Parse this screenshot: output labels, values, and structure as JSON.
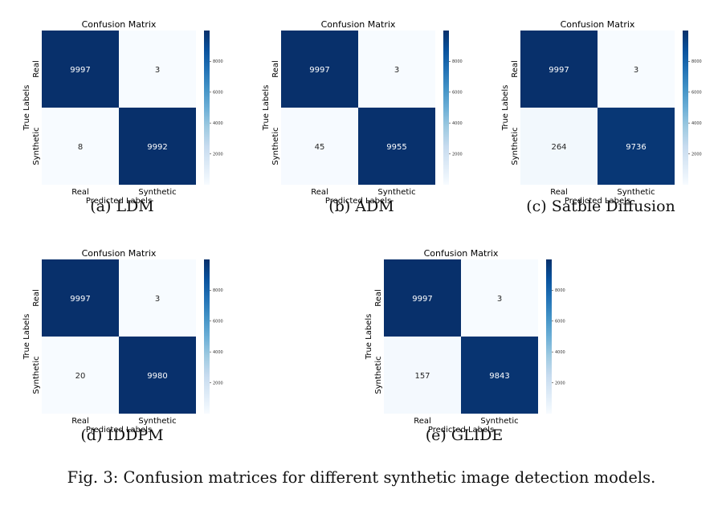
{
  "chart_data": [
    {
      "type": "heatmap",
      "id": "ldm",
      "title": "Confusion Matrix",
      "xlabel": "Predicted Labels",
      "ylabel": "True Labels",
      "x_categories": [
        "Real",
        "Synthetic"
      ],
      "y_categories": [
        "Real",
        "Synthetic"
      ],
      "values": [
        [
          9997,
          3
        ],
        [
          8,
          9992
        ]
      ],
      "colorbar_ticks": [
        "8000",
        "6000",
        "4000",
        "2000"
      ],
      "colorbar_range": [
        0,
        9997
      ],
      "caption": "(a) LDM"
    },
    {
      "type": "heatmap",
      "id": "adm",
      "title": "Confusion Matrix",
      "xlabel": "Predicted Labels",
      "ylabel": "True Labels",
      "x_categories": [
        "Real",
        "Synthetic"
      ],
      "y_categories": [
        "Real",
        "Synthetic"
      ],
      "values": [
        [
          9997,
          3
        ],
        [
          45,
          9955
        ]
      ],
      "colorbar_ticks": [
        "8000",
        "6000",
        "4000",
        "2000"
      ],
      "colorbar_range": [
        0,
        9997
      ],
      "caption": "(b) ADM"
    },
    {
      "type": "heatmap",
      "id": "sd",
      "title": "Confusion Matrix",
      "xlabel": "Predicted Labels",
      "ylabel": "True Labels",
      "x_categories": [
        "Real",
        "Synthetic"
      ],
      "y_categories": [
        "Real",
        "Synthetic"
      ],
      "values": [
        [
          9997,
          3
        ],
        [
          264,
          9736
        ]
      ],
      "colorbar_ticks": [
        "8000",
        "6000",
        "4000",
        "2000"
      ],
      "colorbar_range": [
        0,
        9997
      ],
      "caption": "(c) Satble Diffusion"
    },
    {
      "type": "heatmap",
      "id": "iddpm",
      "title": "Confusion Matrix",
      "xlabel": "Predicted Labels",
      "ylabel": "True Labels",
      "x_categories": [
        "Real",
        "Synthetic"
      ],
      "y_categories": [
        "Real",
        "Synthetic"
      ],
      "values": [
        [
          9997,
          3
        ],
        [
          20,
          9980
        ]
      ],
      "colorbar_ticks": [
        "8000",
        "6000",
        "4000",
        "2000"
      ],
      "colorbar_range": [
        0,
        9997
      ],
      "caption": "(d) IDDPM"
    },
    {
      "type": "heatmap",
      "id": "glide",
      "title": "Confusion Matrix",
      "xlabel": "Predicted Labels",
      "ylabel": "True Labels",
      "x_categories": [
        "Real",
        "Synthetic"
      ],
      "y_categories": [
        "Real",
        "Synthetic"
      ],
      "values": [
        [
          9997,
          3
        ],
        [
          157,
          9843
        ]
      ],
      "colorbar_ticks": [
        "8000",
        "6000",
        "4000",
        "2000"
      ],
      "colorbar_range": [
        0,
        9997
      ],
      "caption": "(e) GLIDE"
    }
  ],
  "colors": {
    "low": "#f7fbff",
    "high": "#08306b",
    "text_on_dark": "#ffffff",
    "text_on_light": "#262626"
  },
  "figure_caption": "Fig. 3: Confusion matrices for different synthetic image detection models."
}
